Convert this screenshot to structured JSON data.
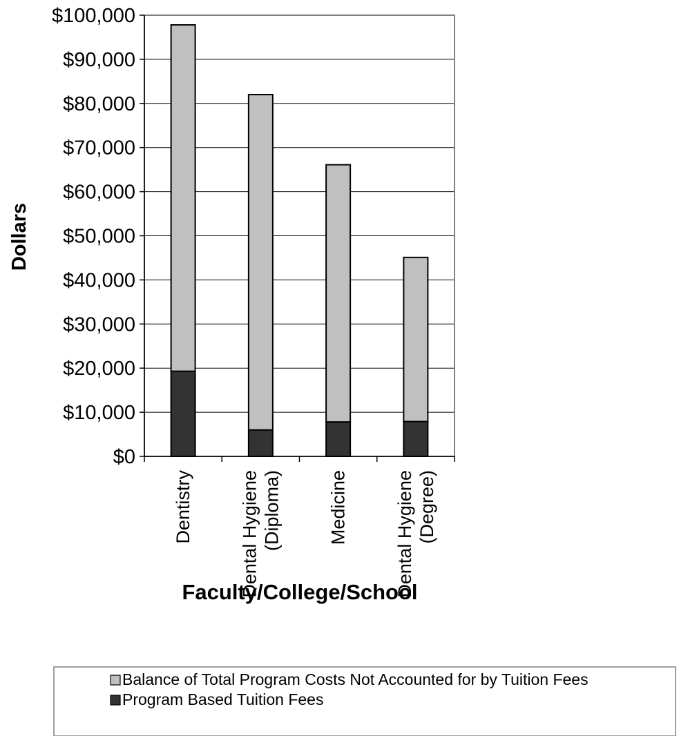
{
  "chart_data": {
    "type": "bar",
    "stacked": true,
    "categories": [
      [
        "Dentistry"
      ],
      [
        "Dental Hygiene",
        "(Diploma)"
      ],
      [
        "Medicine"
      ],
      [
        "Dental Hygiene",
        "(Degree)"
      ]
    ],
    "series": [
      {
        "name": "Program Based Tuition Fees",
        "values": [
          19300,
          6000,
          7800,
          7900
        ],
        "color": "#333333"
      },
      {
        "name": "Balance of Total Program Costs Not Accounted for by Tuition Fees",
        "values": [
          78500,
          76000,
          58300,
          37200
        ],
        "color": "#c0c0c0"
      }
    ],
    "xlabel": "Faculty/College/School",
    "ylabel": "Dollars",
    "ylim": [
      0,
      100000
    ],
    "yticks": [
      "$0",
      "$10,000",
      "$20,000",
      "$30,000",
      "$40,000",
      "$50,000",
      "$60,000",
      "$70,000",
      "$80,000",
      "$90,000",
      "$100,000"
    ],
    "grid": true,
    "legend_position": "bottom",
    "legend_order": [
      "Balance of Total Program Costs Not Accounted for by Tuition Fees",
      "Program Based Tuition Fees"
    ]
  }
}
